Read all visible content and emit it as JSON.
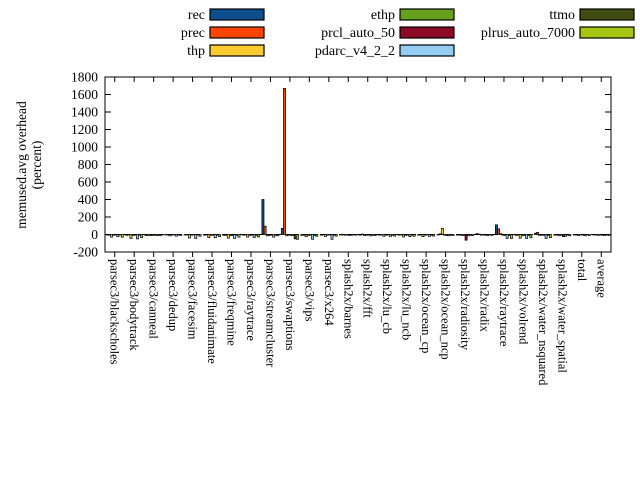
{
  "figure": {
    "background": "#ffffff",
    "border_color": "#000000",
    "zero_line_style": "dashed"
  },
  "chart_data": {
    "type": "bar",
    "title": "",
    "xlabel": "",
    "ylabel": "memused.avg overhead (percent)",
    "ylabel_lines": [
      "memused.avg overhead",
      "(percent)"
    ],
    "ylim": [
      -200,
      1800
    ],
    "ytick_step": 200,
    "ytick_labels": [
      "-200",
      "0",
      "200",
      "400",
      "600",
      "800",
      "1000",
      "1200",
      "1400",
      "1600",
      "1800"
    ],
    "grid": false,
    "legend_position": "top-outside-horizontal",
    "legend_columns": [
      [
        "rec",
        "prec",
        "thp"
      ],
      [
        "ethp",
        "prcl_auto_50",
        "pdarc_v4_2_2"
      ],
      [
        "ttmo",
        "plrus_auto_7000"
      ]
    ],
    "categories": [
      "parsec3/blackscholes",
      "parsec3/bodytrack",
      "parsec3/canneal",
      "parsec3/dedup",
      "parsec3/facesim",
      "parsec3/fluidanimate",
      "parsec3/freqmine",
      "parsec3/raytrace",
      "parsec3/streamcluster",
      "parsec3/swaptions",
      "parsec3/vips",
      "parsec3/x264",
      "splash2x/barnes",
      "splash2x/fft",
      "splash2x/lu_cb",
      "splash2x/lu_ncb",
      "splash2x/ocean_cp",
      "splash2x/ocean_ncp",
      "splash2x/radiosity",
      "splash2x/radix",
      "splash2x/raytrace",
      "splash2x/volrend",
      "splash2x/water_nsquared",
      "splash2x/water_spatial",
      "total",
      "average"
    ],
    "series": [
      {
        "name": "rec",
        "color": "#0d4e8c",
        "values": [
          -5,
          -10,
          -12,
          -5,
          -5,
          -8,
          -10,
          -8,
          400,
          70,
          -10,
          -8,
          -5,
          -8,
          -8,
          -8,
          -8,
          -5,
          -8,
          10,
          110,
          -10,
          15,
          -8,
          -5,
          -5
        ]
      },
      {
        "name": "prec",
        "color": "#ff4500",
        "values": [
          -8,
          -5,
          -10,
          -3,
          -5,
          -5,
          -8,
          -5,
          95,
          1670,
          -8,
          -5,
          -4,
          5,
          -5,
          -5,
          -5,
          8,
          -5,
          5,
          65,
          -8,
          25,
          -5,
          -4,
          -3
        ]
      },
      {
        "name": "thp",
        "color": "#fdca30",
        "values": [
          -30,
          -45,
          -12,
          -15,
          -40,
          -35,
          -42,
          -30,
          -15,
          -15,
          -25,
          -22,
          -8,
          -12,
          -20,
          -28,
          -25,
          70,
          -12,
          -8,
          10,
          -42,
          -10,
          -15,
          -12,
          -10
        ]
      },
      {
        "name": "ethp",
        "color": "#66a11e",
        "values": [
          -8,
          -10,
          -10,
          -5,
          -8,
          -10,
          -12,
          -10,
          -10,
          -8,
          -10,
          -8,
          -5,
          -8,
          -8,
          -10,
          -8,
          -8,
          -10,
          -5,
          -8,
          -12,
          -8,
          -8,
          -5,
          -5
        ]
      },
      {
        "name": "prcl_auto_50",
        "color": "#8b0a26",
        "values": [
          -5,
          -8,
          -8,
          -5,
          -5,
          -8,
          -10,
          -8,
          -8,
          -10,
          -8,
          -6,
          -10,
          -6,
          -6,
          -8,
          -6,
          -10,
          -65,
          -8,
          -10,
          -10,
          -10,
          -25,
          -6,
          -8
        ]
      },
      {
        "name": "pdarc_v4_2_2",
        "color": "#92cdf2",
        "values": [
          -25,
          -50,
          -12,
          -18,
          -45,
          -38,
          -45,
          -35,
          -30,
          -12,
          -55,
          -55,
          -8,
          -15,
          -22,
          -25,
          -22,
          -15,
          -15,
          -12,
          -45,
          -45,
          -45,
          -20,
          -15,
          -12
        ]
      },
      {
        "name": "ttmo",
        "color": "#414d10",
        "values": [
          -5,
          -8,
          -10,
          -4,
          -5,
          -8,
          -10,
          -12,
          -10,
          -50,
          -10,
          -8,
          -5,
          -8,
          -8,
          -8,
          -8,
          -8,
          -8,
          -5,
          -12,
          -10,
          -10,
          -8,
          -5,
          -6
        ]
      },
      {
        "name": "plrus_auto_7000",
        "color": "#a5c713",
        "values": [
          -30,
          -35,
          -10,
          -10,
          -20,
          -25,
          -30,
          -28,
          -15,
          -55,
          -20,
          -18,
          -8,
          -12,
          -18,
          -20,
          -18,
          -12,
          -12,
          -10,
          -45,
          -38,
          -35,
          -15,
          -12,
          -10
        ]
      }
    ]
  }
}
